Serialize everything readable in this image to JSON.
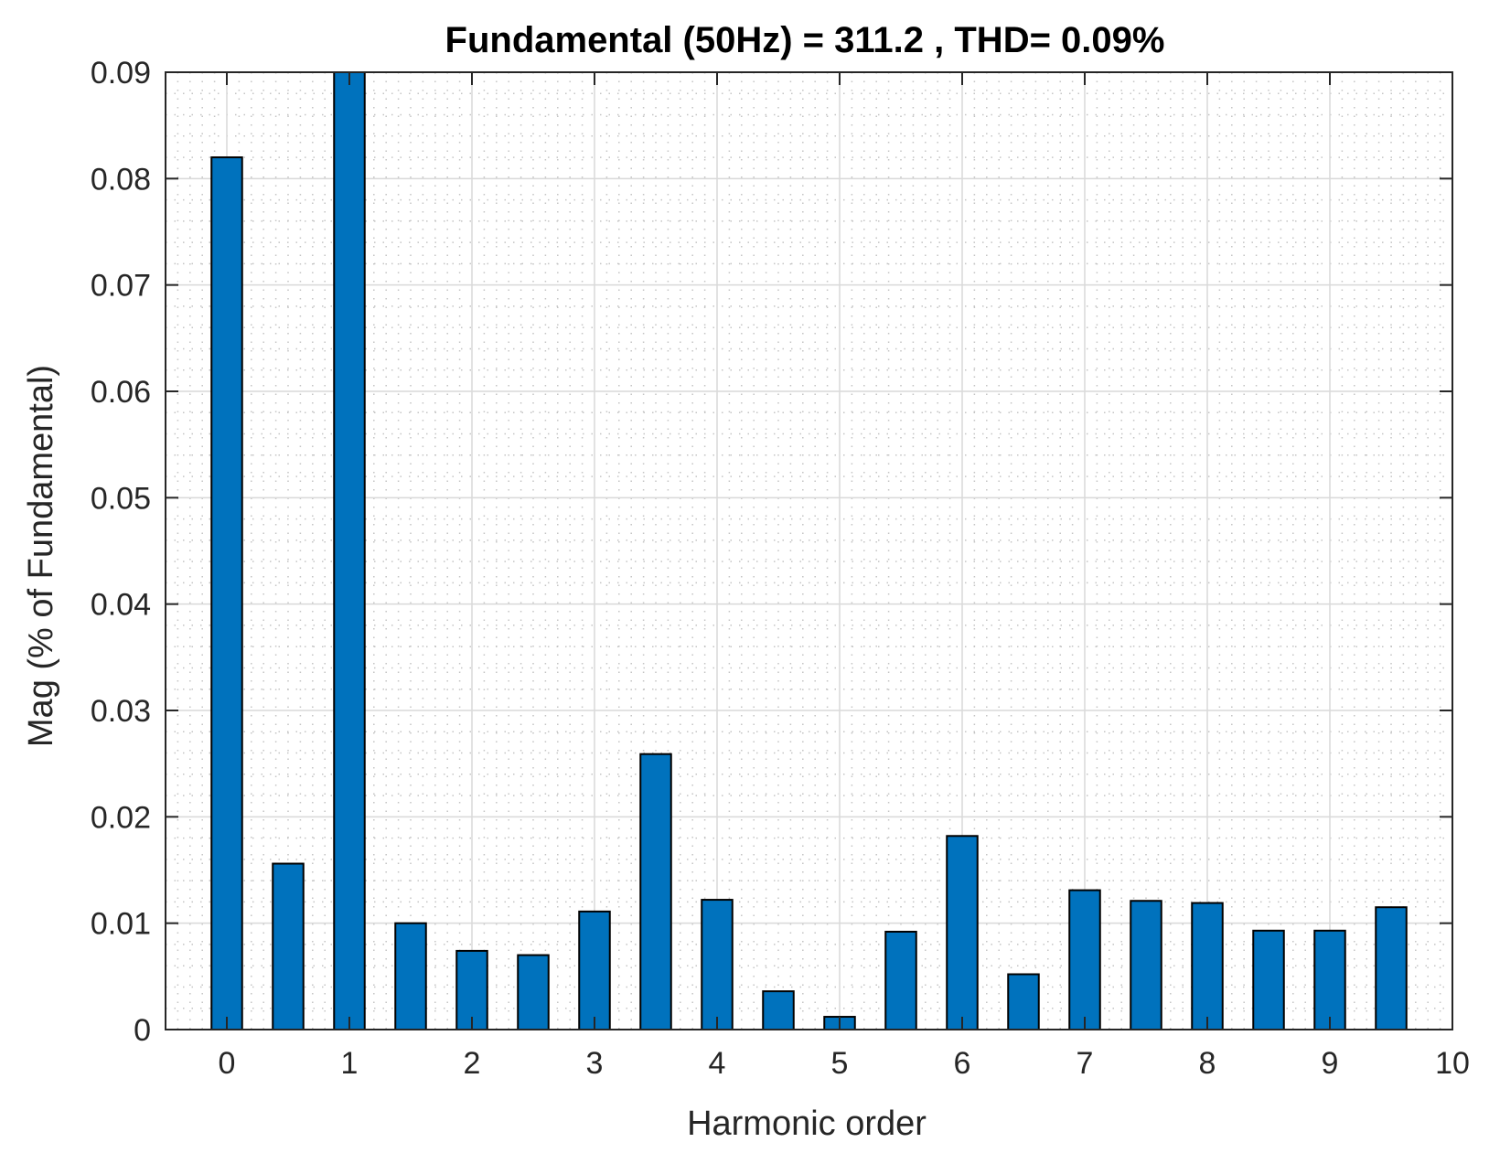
{
  "chart_data": {
    "type": "bar",
    "title": "Fundamental (50Hz) = 311.2 , THD= 0.09%",
    "xlabel": "Harmonic order",
    "ylabel": "Mag (% of Fundamental)",
    "xlim": [
      -0.5,
      10
    ],
    "ylim": [
      0,
      0.09
    ],
    "x_ticks": [
      0,
      1,
      2,
      3,
      4,
      5,
      6,
      7,
      8,
      9,
      10
    ],
    "x_tick_labels": [
      "0",
      "1",
      "2",
      "3",
      "4",
      "5",
      "6",
      "7",
      "8",
      "9",
      "10"
    ],
    "y_ticks": [
      0,
      0.01,
      0.02,
      0.03,
      0.04,
      0.05,
      0.06,
      0.07,
      0.08,
      0.09
    ],
    "y_tick_labels": [
      "0",
      "0.01",
      "0.02",
      "0.03",
      "0.04",
      "0.05",
      "0.06",
      "0.07",
      "0.08",
      "0.09"
    ],
    "grid": "major and minor",
    "bar_color": "#0072BD",
    "x": [
      0,
      0.5,
      1,
      1.5,
      2,
      2.5,
      3,
      3.5,
      4,
      4.5,
      5,
      5.5,
      6,
      6.5,
      7,
      7.5,
      8,
      8.5,
      9,
      9.5
    ],
    "values": [
      0.082,
      0.0156,
      0.09,
      0.01,
      0.0074,
      0.007,
      0.0111,
      0.0259,
      0.0122,
      0.0036,
      0.0012,
      0.0092,
      0.0182,
      0.0052,
      0.0131,
      0.0121,
      0.0119,
      0.0093,
      0.0093,
      0.0115
    ]
  }
}
